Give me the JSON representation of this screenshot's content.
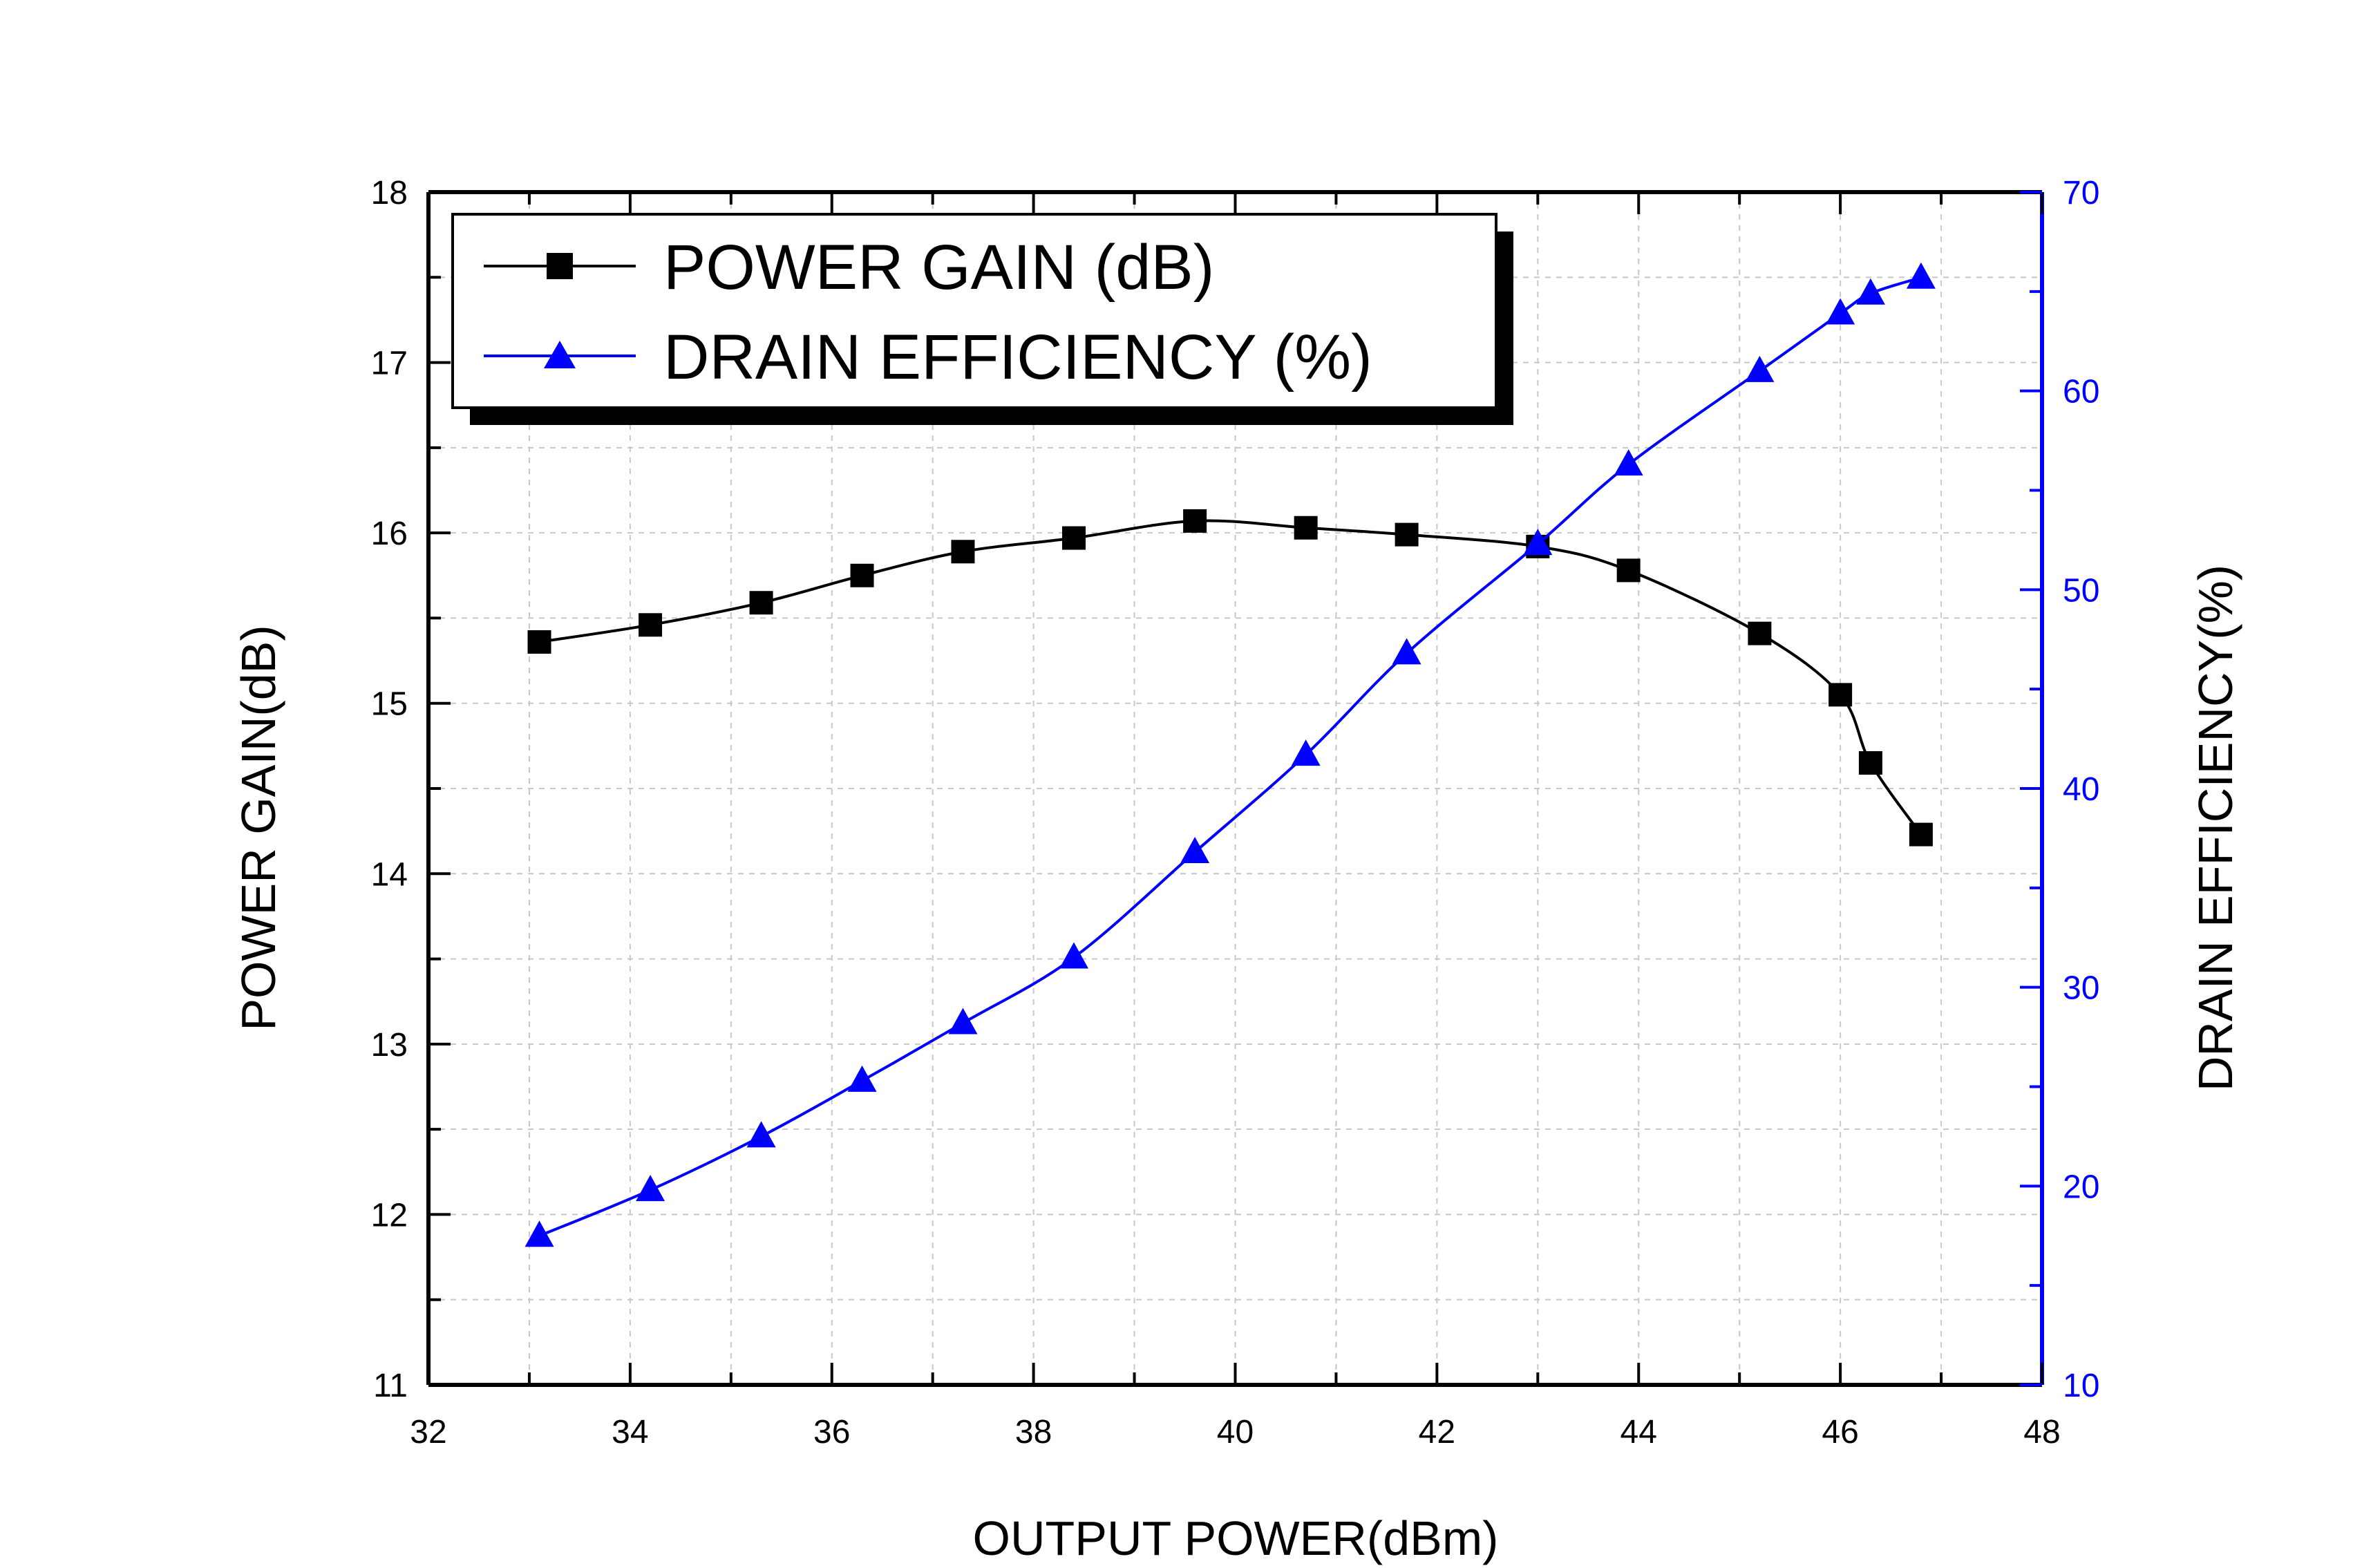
{
  "chart_data": {
    "type": "line",
    "title": "",
    "xlabel": "OUTPUT POWER(dBm)",
    "ylabel": "POWER GAIN(dB)",
    "y2label": "DRAIN EFFICIENCY(%)",
    "xlim": [
      32,
      48
    ],
    "ylim": [
      11,
      18
    ],
    "y2lim": [
      10,
      70
    ],
    "xticks": [
      32,
      34,
      36,
      38,
      40,
      42,
      44,
      46,
      48
    ],
    "yticks": [
      11,
      12,
      13,
      14,
      15,
      16,
      17,
      18
    ],
    "y2ticks": [
      10,
      20,
      30,
      40,
      50,
      60,
      70
    ],
    "grid": true,
    "legend_position": "top-left",
    "series": [
      {
        "name": "POWER GAIN (dB)",
        "axis": "left",
        "marker": "square",
        "color": "#000000",
        "x": [
          33.1,
          34.2,
          35.3,
          36.3,
          37.3,
          38.4,
          39.6,
          40.7,
          41.7,
          43.0,
          43.9,
          45.2,
          46.0,
          46.3,
          46.8
        ],
        "y": [
          15.36,
          15.46,
          15.59,
          15.75,
          15.89,
          15.97,
          16.07,
          16.03,
          15.99,
          15.92,
          15.78,
          15.41,
          15.05,
          14.65,
          14.23
        ]
      },
      {
        "name": "DRAIN EFFICIENCY (%)",
        "axis": "right",
        "marker": "triangle",
        "color": "#0000ff",
        "x": [
          33.1,
          34.2,
          35.3,
          36.3,
          37.3,
          38.4,
          39.6,
          40.7,
          41.7,
          43.0,
          43.9,
          45.2,
          46.0,
          46.3,
          46.8
        ],
        "y": [
          17.5,
          19.8,
          22.5,
          25.3,
          28.2,
          31.5,
          36.8,
          41.7,
          46.8,
          52.3,
          56.3,
          61.0,
          63.9,
          64.9,
          65.7
        ]
      }
    ]
  }
}
